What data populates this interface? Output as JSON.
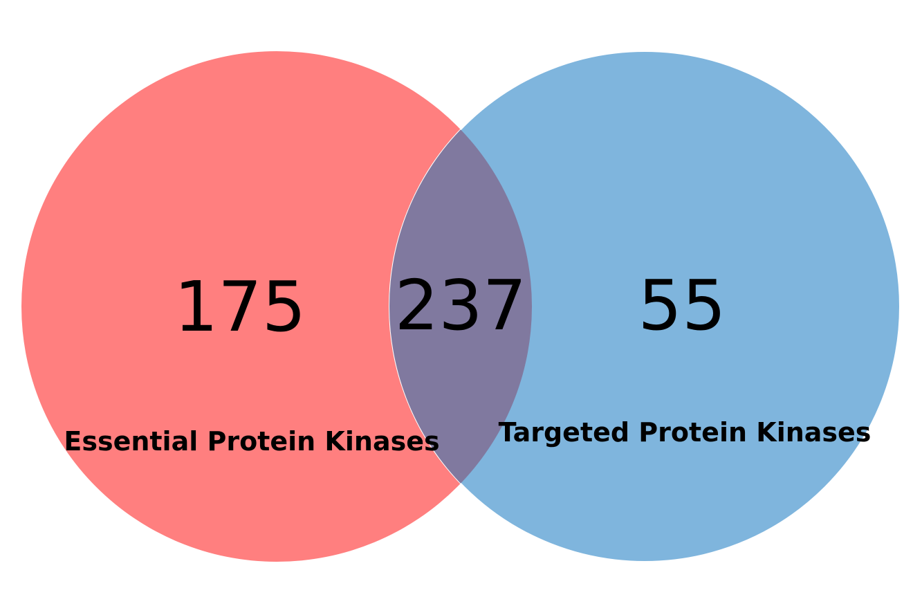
{
  "venn": {
    "sets": [
      {
        "label": "Essential Protein Kinases",
        "color": "#ff7f7f"
      },
      {
        "label": "Targeted Protein Kinases",
        "color": "#7fb5dd"
      }
    ],
    "overlap_color": "#80799f",
    "regions": {
      "essential_only": "175",
      "intersection": "237",
      "targeted_only": "55"
    }
  }
}
